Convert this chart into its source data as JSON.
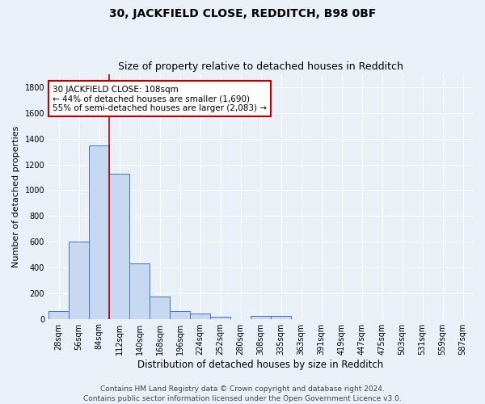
{
  "title": "30, JACKFIELD CLOSE, REDDITCH, B98 0BF",
  "subtitle": "Size of property relative to detached houses in Redditch",
  "xlabel": "Distribution of detached houses by size in Redditch",
  "ylabel": "Number of detached properties",
  "categories": [
    "28sqm",
    "56sqm",
    "84sqm",
    "112sqm",
    "140sqm",
    "168sqm",
    "196sqm",
    "224sqm",
    "252sqm",
    "280sqm",
    "308sqm",
    "335sqm",
    "363sqm",
    "391sqm",
    "419sqm",
    "447sqm",
    "475sqm",
    "503sqm",
    "531sqm",
    "559sqm",
    "587sqm"
  ],
  "values": [
    60,
    600,
    1350,
    1130,
    430,
    175,
    60,
    40,
    15,
    0,
    20,
    20,
    0,
    0,
    0,
    0,
    0,
    0,
    0,
    0,
    0
  ],
  "bar_color": "#c5d8f0",
  "bar_edge_color": "#4472c4",
  "background_color": "#eaf0f8",
  "grid_color": "#ffffff",
  "vline_color": "#c00000",
  "vline_x_index": 2.5,
  "annotation_text": "30 JACKFIELD CLOSE: 108sqm\n← 44% of detached houses are smaller (1,690)\n55% of semi-detached houses are larger (2,083) →",
  "annotation_box_color": "#ffffff",
  "annotation_box_edge": "#c00000",
  "ylim": [
    0,
    1900
  ],
  "yticks": [
    0,
    200,
    400,
    600,
    800,
    1000,
    1200,
    1400,
    1600,
    1800
  ],
  "footer": "Contains HM Land Registry data © Crown copyright and database right 2024.\nContains public sector information licensed under the Open Government Licence v3.0.",
  "title_fontsize": 10,
  "subtitle_fontsize": 9,
  "xlabel_fontsize": 8.5,
  "ylabel_fontsize": 8,
  "tick_fontsize": 7,
  "footer_fontsize": 6.5,
  "annot_fontsize": 7.5
}
